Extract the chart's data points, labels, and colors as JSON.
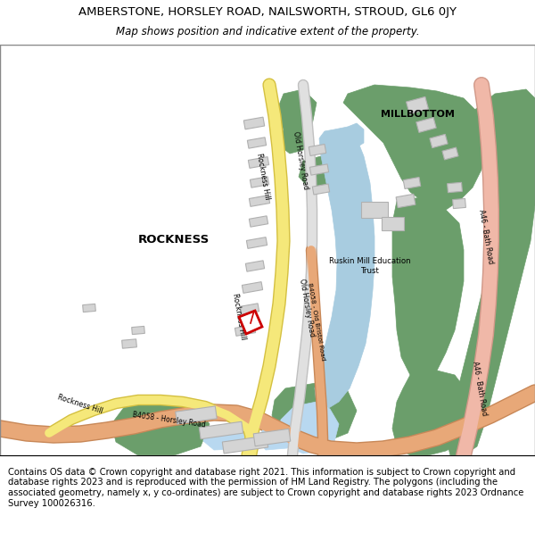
{
  "title": "AMBERSTONE, HORSLEY ROAD, NAILSWORTH, STROUD, GL6 0JY",
  "subtitle": "Map shows position and indicative extent of the property.",
  "footer": "Contains OS data © Crown copyright and database right 2021. This information is subject to Crown copyright and database rights 2023 and is reproduced with the permission of HM Land Registry. The polygons (including the associated geometry, namely x, y co-ordinates) are subject to Crown copyright and database rights 2023 Ordnance Survey 100026316.",
  "map_bg": "#ffffff",
  "green_color": "#6b9e6b",
  "road_yellow": "#f5e87a",
  "road_yellow_edge": "#d4c040",
  "road_orange": "#e8a878",
  "road_orange_edge": "#c88858",
  "road_pink": "#f0b8a8",
  "road_pink_edge": "#d09888",
  "road_gray": "#e0e0e0",
  "road_gray_edge": "#c0c0c0",
  "water_blue": "#a8cce0",
  "water_blue2": "#b8d8f0",
  "building_gray": "#d4d4d4",
  "building_edge": "#b0b0b0",
  "property_red": "#cc0000",
  "title_fontsize": 9.5,
  "subtitle_fontsize": 8.5,
  "footer_fontsize": 7.2
}
